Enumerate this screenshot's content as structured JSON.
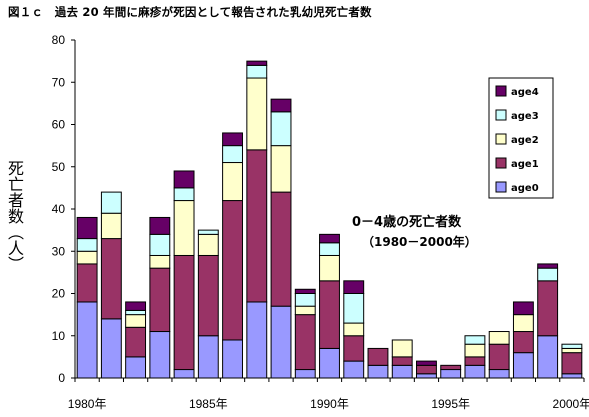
{
  "chart_data": {
    "type": "bar",
    "stacked": true,
    "title": "図１ｃ　過去 20 年間に麻疹が死因として報告された乳幼児死亡者数",
    "ylabel": "死亡者数（人）",
    "xlabel": "",
    "ylim": [
      0,
      80
    ],
    "yticks": [
      "0",
      "10",
      "20",
      "30",
      "40",
      "50",
      "60",
      "70",
      "80"
    ],
    "xtick_labels": [
      {
        "label": "1980年",
        "year": 1980
      },
      {
        "label": "1985年",
        "year": 1985
      },
      {
        "label": "1990年",
        "year": 1990
      },
      {
        "label": "1995年",
        "year": 1995
      },
      {
        "label": "2000年",
        "year": 2000
      }
    ],
    "categories": [
      1980,
      1981,
      1982,
      1983,
      1984,
      1985,
      1986,
      1987,
      1988,
      1989,
      1990,
      1991,
      1992,
      1993,
      1994,
      1995,
      1996,
      1997,
      1998,
      1999,
      2000
    ],
    "series": [
      {
        "name": "age0",
        "color": "#9999ff",
        "values": [
          18,
          14,
          5,
          11,
          2,
          10,
          9,
          18,
          17,
          2,
          7,
          4,
          3,
          3,
          1,
          2,
          3,
          2,
          6,
          10,
          1
        ]
      },
      {
        "name": "age1",
        "color": "#993366",
        "values": [
          9,
          19,
          7,
          15,
          27,
          19,
          33,
          36,
          27,
          13,
          16,
          6,
          4,
          2,
          2,
          1,
          2,
          6,
          5,
          13,
          5
        ]
      },
      {
        "name": "age2",
        "color": "#ffffcc",
        "values": [
          3,
          6,
          3,
          3,
          13,
          5,
          9,
          17,
          11,
          2,
          6,
          3,
          0,
          4,
          0,
          0,
          3,
          3,
          4,
          0,
          1
        ]
      },
      {
        "name": "age3",
        "color": "#ccffff",
        "values": [
          3,
          5,
          1,
          5,
          3,
          1,
          4,
          3,
          8,
          3,
          3,
          7,
          0,
          0,
          0,
          0,
          2,
          0,
          0,
          3,
          1
        ]
      },
      {
        "name": "age4",
        "color": "#660066",
        "values": [
          5,
          0,
          2,
          4,
          4,
          0,
          3,
          1,
          3,
          1,
          2,
          3,
          0,
          0,
          1,
          0,
          0,
          0,
          3,
          1,
          0
        ]
      }
    ],
    "legend": {
      "position": "right",
      "order": [
        "age4",
        "age3",
        "age2",
        "age1",
        "age0"
      ]
    },
    "grid": false,
    "annotation": {
      "line1": "0－4歳の死亡者数",
      "line2": "（1980－2000年）"
    }
  }
}
